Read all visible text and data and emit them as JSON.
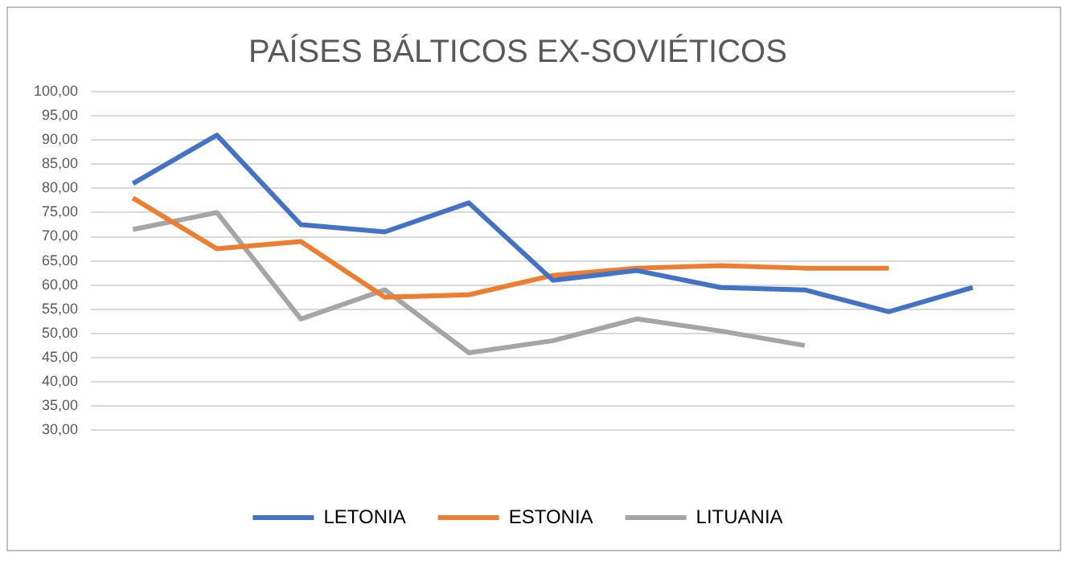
{
  "chart_data": {
    "type": "line",
    "title": "PAÍSES BÁLTICOS EX-SOVIÉTICOS",
    "categories": [
      null,
      null,
      null,
      null,
      null,
      null,
      null,
      null,
      null,
      null,
      null
    ],
    "series": [
      {
        "name": "LETONIA",
        "color": "#4472c4",
        "values": [
          81,
          91,
          72.5,
          71,
          77,
          61,
          63,
          59.5,
          59,
          54.5,
          59.5
        ]
      },
      {
        "name": "ESTONIA",
        "color": "#ed7d31",
        "values": [
          78,
          67.5,
          69,
          57.5,
          58,
          62,
          63.5,
          64,
          63.5,
          63.5,
          null
        ]
      },
      {
        "name": "LITUANIA",
        "color": "#a5a5a5",
        "values": [
          71.5,
          75,
          53,
          59,
          46,
          48.5,
          53,
          50.5,
          47.5,
          null,
          null
        ]
      }
    ],
    "ylim": [
      30,
      100
    ],
    "yticks": [
      {
        "value": 30,
        "label": "30,00"
      },
      {
        "value": 35,
        "label": "35,00"
      },
      {
        "value": 40,
        "label": "40,00"
      },
      {
        "value": 45,
        "label": "45,00"
      },
      {
        "value": 50,
        "label": "50,00"
      },
      {
        "value": 55,
        "label": "55,00"
      },
      {
        "value": 60,
        "label": "60,00"
      },
      {
        "value": 65,
        "label": "65,00"
      },
      {
        "value": 70,
        "label": "70,00"
      },
      {
        "value": 75,
        "label": "75,00"
      },
      {
        "value": 80,
        "label": "80,00"
      },
      {
        "value": 85,
        "label": "85,00"
      },
      {
        "value": 90,
        "label": "90,00"
      },
      {
        "value": 95,
        "label": "95,00"
      },
      {
        "value": 100,
        "label": "100,00"
      }
    ],
    "grid": "y",
    "legend": "bottom",
    "marker": "none",
    "line_style": "solid"
  }
}
